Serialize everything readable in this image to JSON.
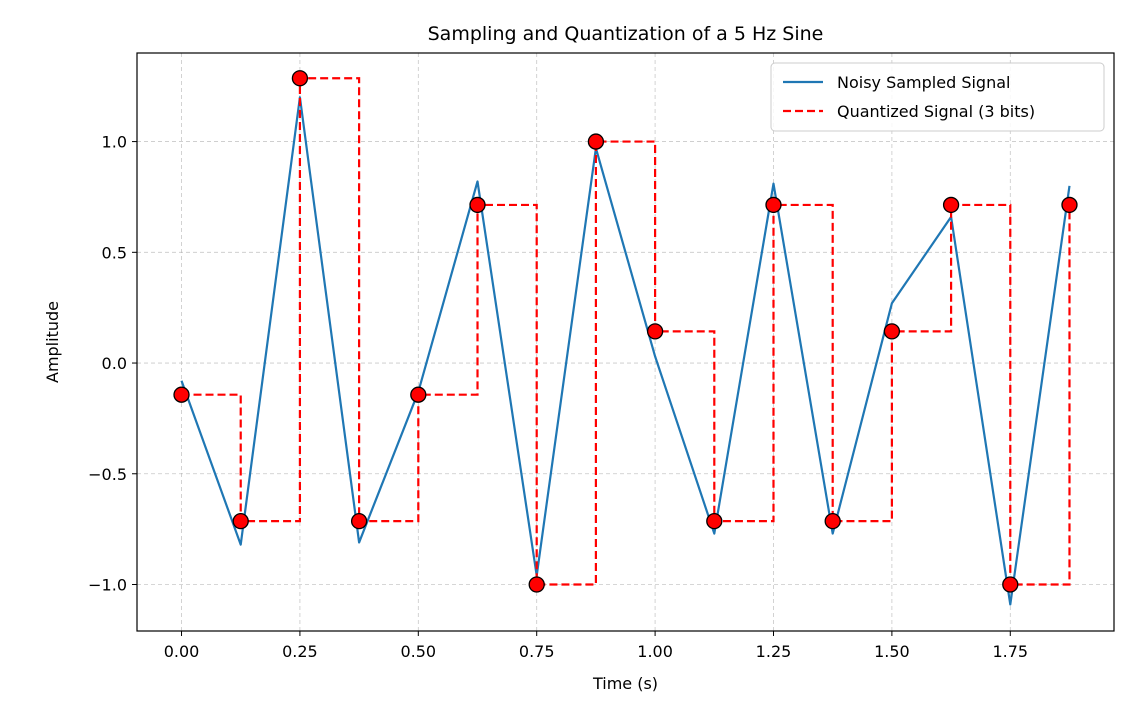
{
  "chart_data": {
    "type": "line",
    "title": "Sampling and Quantization of a 5 Hz Sine",
    "xlabel": "Time (s)",
    "ylabel": "Amplitude",
    "xlim": [
      -0.094,
      1.969
    ],
    "ylim": [
      -1.21,
      1.4
    ],
    "xticks": [
      0.0,
      0.25,
      0.5,
      0.75,
      1.0,
      1.25,
      1.5,
      1.75
    ],
    "xtick_labels": [
      "0.00",
      "0.25",
      "0.50",
      "0.75",
      "1.00",
      "1.25",
      "1.50",
      "1.75"
    ],
    "yticks": [
      -1.0,
      -0.5,
      0.0,
      0.5,
      1.0
    ],
    "ytick_labels": [
      "−1.0",
      "−0.5",
      "0.0",
      "0.5",
      "1.0"
    ],
    "grid": true,
    "legend_position": "top-right",
    "x": [
      0.0,
      0.125,
      0.25,
      0.375,
      0.5,
      0.625,
      0.75,
      0.875,
      1.0,
      1.125,
      1.25,
      1.375,
      1.5,
      1.625,
      1.75,
      1.875
    ],
    "series": [
      {
        "name": "Noisy Sampled Signal",
        "style": "solid",
        "color": "#1f77b4",
        "values": [
          -0.08,
          -0.82,
          1.2,
          -0.81,
          -0.13,
          0.82,
          -0.96,
          0.97,
          0.03,
          -0.77,
          0.81,
          -0.77,
          0.27,
          0.66,
          -1.09,
          0.8
        ]
      },
      {
        "name": "Quantized Signal (3 bits)",
        "style": "dashed-step",
        "color": "#ff0000",
        "marker_color": "#ff0000",
        "values": [
          -0.143,
          -0.714,
          1.286,
          -0.714,
          -0.143,
          0.714,
          -1.0,
          1.0,
          0.143,
          -0.714,
          0.714,
          -0.714,
          0.143,
          0.714,
          -1.0,
          0.714
        ]
      }
    ]
  }
}
